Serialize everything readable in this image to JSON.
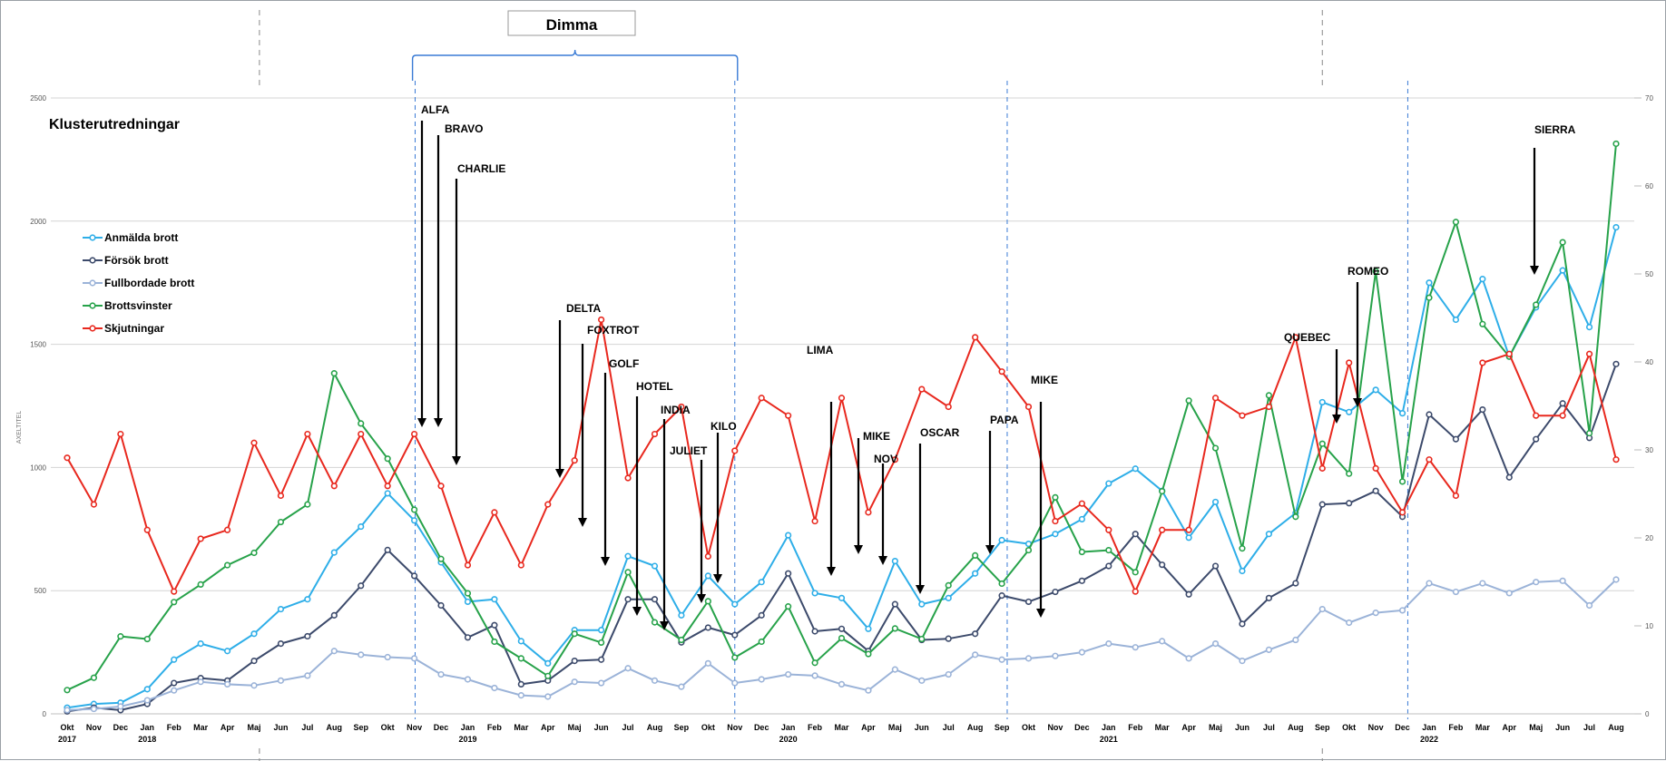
{
  "chart_data": {
    "type": "line",
    "title": "Klusterutredningar",
    "ylabel": "AXELTITEL",
    "ylim": [
      0,
      2500
    ],
    "y2lim": [
      0,
      70
    ],
    "yticks": [
      0,
      500,
      1000,
      1500,
      2000,
      2500
    ],
    "y2ticks": [
      0,
      10,
      20,
      30,
      40,
      50,
      60,
      70
    ],
    "grid": true,
    "legend_position": "top-left",
    "months": [
      "Okt",
      "Nov",
      "Dec",
      "Jan",
      "Feb",
      "Mar",
      "Apr",
      "Maj",
      "Jun",
      "Jul",
      "Aug",
      "Sep",
      "Okt",
      "Nov",
      "Dec",
      "Jan",
      "Feb",
      "Mar",
      "Apr",
      "Maj",
      "Jun",
      "Jul",
      "Aug",
      "Sep",
      "Okt",
      "Nov",
      "Dec",
      "Jan",
      "Feb",
      "Mar",
      "Apr",
      "Maj",
      "Jun",
      "Jul",
      "Aug",
      "Sep",
      "Okt",
      "Nov",
      "Dec",
      "Jan",
      "Feb",
      "Mar",
      "Apr",
      "Maj",
      "Jun",
      "Jul",
      "Aug",
      "Sep",
      "Okt",
      "Nov",
      "Dec",
      "Jan",
      "Feb",
      "Mar",
      "Apr",
      "Maj",
      "Jun",
      "Jul",
      "Aug"
    ],
    "years": [
      {
        "label": "2017",
        "index": 0
      },
      {
        "label": "2018",
        "index": 3
      },
      {
        "label": "2019",
        "index": 15
      },
      {
        "label": "2020",
        "index": 27
      },
      {
        "label": "2021",
        "index": 39
      },
      {
        "label": "2022",
        "index": 51
      }
    ],
    "series": [
      {
        "name": "Anmälda brott",
        "color": "#2eaee8",
        "axis": "left",
        "values": [
          25,
          40,
          45,
          100,
          220,
          285,
          255,
          325,
          425,
          465,
          655,
          760,
          895,
          785,
          615,
          455,
          465,
          295,
          205,
          340,
          340,
          640,
          600,
          400,
          560,
          445,
          535,
          725,
          490,
          470,
          345,
          620,
          445,
          470,
          570,
          705,
          690,
          730,
          790,
          935,
          995,
          905,
          715,
          860,
          580,
          730,
          815,
          1265,
          1225,
          1315,
          1220,
          1750,
          1600,
          1765,
          1450,
          1650,
          1800,
          1570,
          1975
        ]
      },
      {
        "name": "Försök brott",
        "color": "#3c4a6b",
        "axis": "left",
        "values": [
          10,
          25,
          15,
          40,
          125,
          145,
          135,
          215,
          285,
          315,
          400,
          520,
          665,
          560,
          440,
          310,
          360,
          120,
          135,
          215,
          220,
          465,
          465,
          290,
          350,
          320,
          400,
          570,
          335,
          345,
          255,
          445,
          300,
          305,
          325,
          480,
          455,
          495,
          540,
          600,
          730,
          605,
          485,
          600,
          365,
          470,
          530,
          850,
          855,
          905,
          800,
          1215,
          1115,
          1235,
          960,
          1115,
          1260,
          1120,
          1420
        ]
      },
      {
        "name": "Fullbordade brott",
        "color": "#9bb3d8",
        "axis": "left",
        "values": [
          15,
          20,
          30,
          55,
          95,
          130,
          120,
          115,
          135,
          155,
          255,
          240,
          230,
          225,
          160,
          140,
          105,
          75,
          70,
          130,
          125,
          185,
          135,
          110,
          205,
          125,
          140,
          160,
          155,
          120,
          95,
          180,
          135,
          160,
          240,
          220,
          225,
          235,
          250,
          285,
          270,
          295,
          225,
          285,
          215,
          260,
          300,
          425,
          370,
          410,
          420,
          530,
          495,
          530,
          490,
          535,
          540,
          440,
          545
        ]
      },
      {
        "name": "Brottsvinster",
        "color": "#27a24a",
        "axis": "right",
        "values": [
          2.7,
          4.1,
          8.8,
          8.5,
          12.7,
          14.7,
          16.9,
          18.3,
          21.8,
          23.8,
          38.7,
          33.0,
          29.0,
          23.2,
          17.6,
          13.7,
          8.2,
          6.3,
          4.3,
          9.1,
          8.1,
          16.1,
          10.4,
          8.4,
          12.8,
          6.4,
          8.2,
          12.2,
          5.8,
          8.6,
          6.8,
          9.7,
          8.5,
          14.6,
          18.0,
          14.8,
          18.6,
          24.6,
          18.4,
          18.6,
          16.1,
          25.3,
          35.6,
          30.2,
          18.8,
          36.2,
          22.4,
          30.7,
          27.3,
          50.3,
          26.4,
          47.3,
          55.9,
          44.3,
          40.6,
          46.5,
          53.6,
          31.9,
          64.8
        ]
      },
      {
        "name": "Skjutningar",
        "color": "#e8281e",
        "axis": "right",
        "values": [
          29.1,
          23.8,
          31.8,
          20.9,
          13.9,
          19.9,
          20.9,
          30.8,
          24.8,
          31.8,
          25.9,
          31.8,
          25.9,
          31.8,
          25.9,
          16.9,
          22.9,
          16.9,
          23.8,
          28.8,
          44.8,
          26.8,
          31.8,
          34.9,
          17.9,
          29.9,
          35.9,
          33.9,
          21.9,
          35.9,
          22.9,
          28.9,
          36.9,
          34.9,
          42.8,
          38.9,
          34.9,
          21.9,
          23.9,
          20.9,
          13.9,
          20.9,
          20.9,
          35.9,
          33.9,
          34.9,
          42.8,
          27.9,
          39.9,
          27.9,
          22.9,
          28.9,
          24.8,
          39.9,
          40.9,
          33.9,
          33.9,
          40.9,
          28.9
        ]
      }
    ],
    "annotations": [
      {
        "label": "ALFA",
        "index": 13
      },
      {
        "label": "BRAVO",
        "index": 13
      },
      {
        "label": "CHARLIE",
        "index": 14
      },
      {
        "label": "DELTA",
        "index": 19
      },
      {
        "label": "FOXTROT",
        "index": 19
      },
      {
        "label": "GOLF",
        "index": 20
      },
      {
        "label": "HOTEL",
        "index": 21
      },
      {
        "label": "INDIA",
        "index": 22
      },
      {
        "label": "JULIET",
        "index": 24
      },
      {
        "label": "KILO",
        "index": 24
      },
      {
        "label": "LIMA",
        "index": 29
      },
      {
        "label": "MIKE",
        "index": 30
      },
      {
        "label": "NOV",
        "index": 31
      },
      {
        "label": "OSCAR",
        "index": 32
      },
      {
        "label": "PAPA",
        "index": 35
      },
      {
        "label": "MIKE",
        "index": 36
      },
      {
        "label": "QUEBEC",
        "index": 47
      },
      {
        "label": "ROMEO",
        "index": 48
      },
      {
        "label": "SIERRA",
        "index": 55
      }
    ],
    "bracket": {
      "label": "Dimma",
      "start_index": 13,
      "end_index": 25
    }
  }
}
